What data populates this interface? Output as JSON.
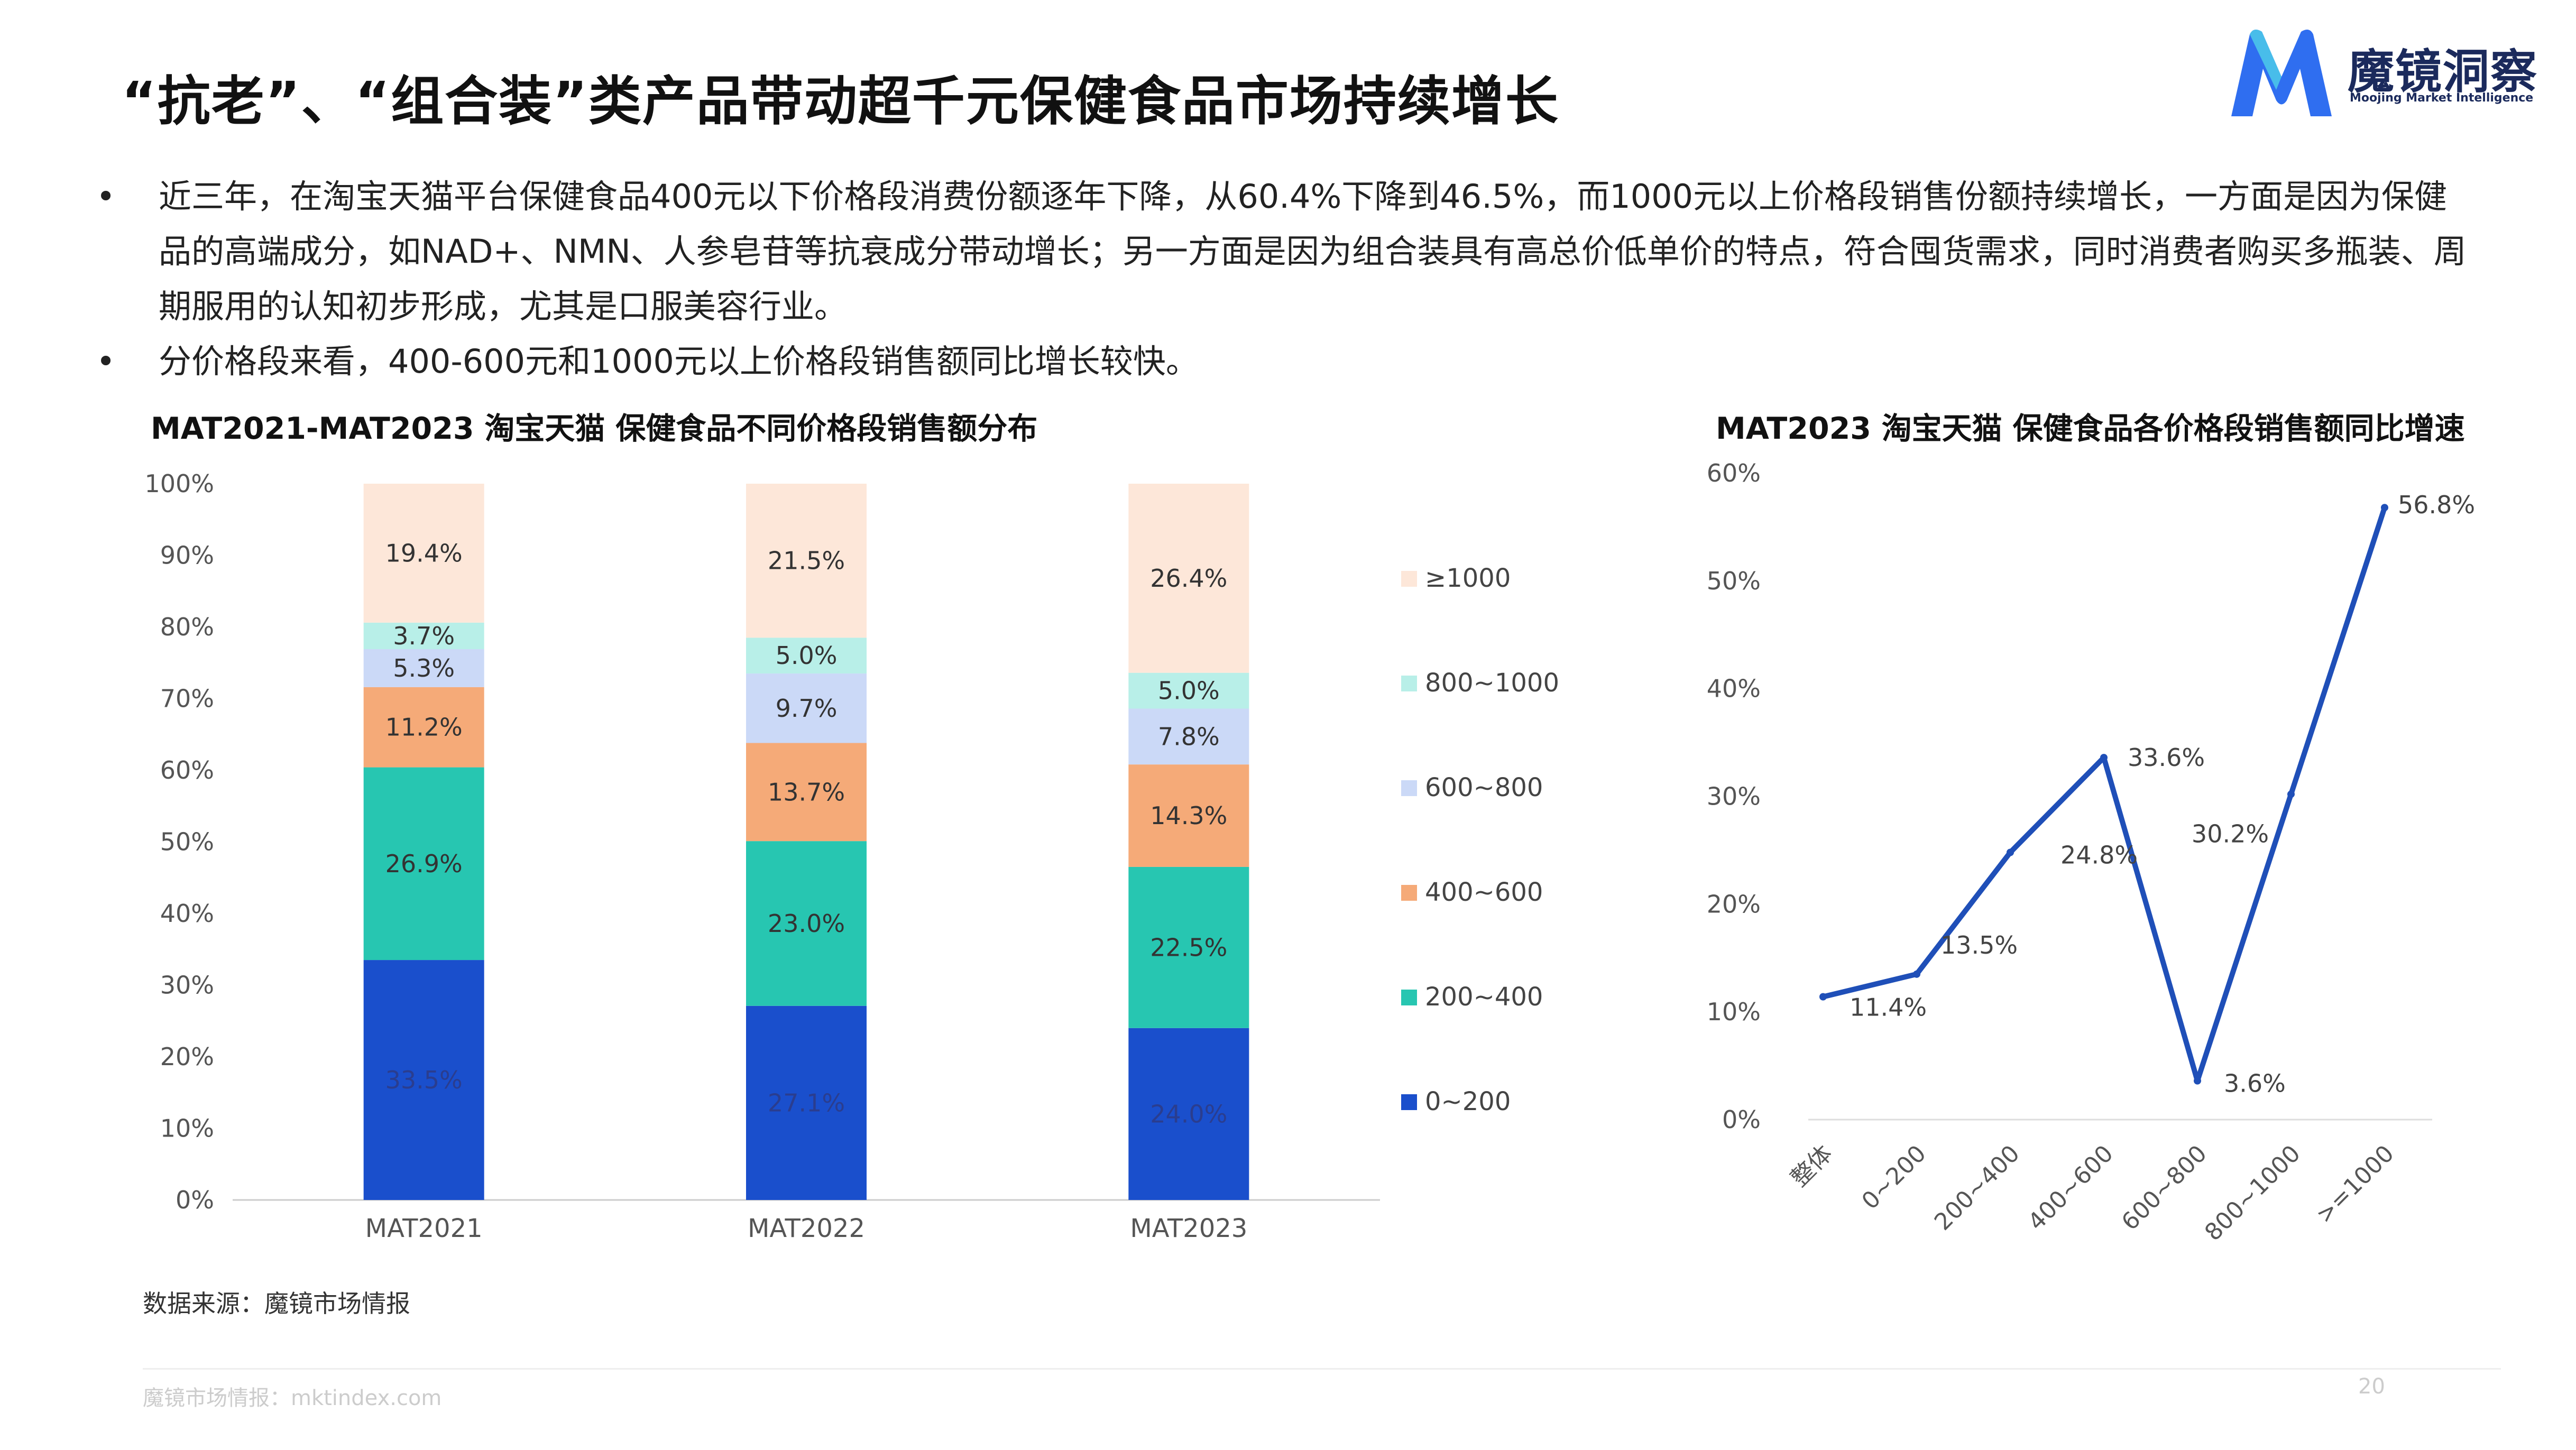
{
  "title": "“抗老”、“组合装”类产品带动超千元保健食品市场持续增长",
  "logo": {
    "name_cn": "魔镜洞察",
    "name_en": "Moojing Market Intelligence",
    "brand_color": "#2f6ef0"
  },
  "bullets": [
    "近三年，在淘宝天猫平台保健食品400元以下价格段消费份额逐年下降，从60.4%下降到46.5%，而1000元以上价格段销售份额持续增长，一方面是因为保健品的高端成分，如NAD+、NMN、人参皂苷等抗衰成分带动增长；另一方面是因为组合装具有高总价低单价的特点，符合囤货需求，同时消费者购买多瓶装、周期服用的认知初步形成，尤其是口服美容行业。",
    "分价格段来看，400-600元和1000元以上价格段销售额同比增长较快。"
  ],
  "bullet_symbol": "•",
  "chart_data": [
    {
      "type": "bar",
      "stacked": true,
      "title": "MAT2021-MAT2023 淘宝天猫 保健食品不同价格段销售额分布",
      "categories": [
        "MAT2021",
        "MAT2022",
        "MAT2023"
      ],
      "ylim": [
        0,
        100
      ],
      "yticks": [
        "0%",
        "10%",
        "20%",
        "30%",
        "40%",
        "50%",
        "60%",
        "70%",
        "80%",
        "90%",
        "100%"
      ],
      "legend_position": "right",
      "series": [
        {
          "name": "0~200",
          "color": "#1a4fcc",
          "values": [
            33.5,
            27.1,
            24.0
          ],
          "labels": [
            "33.5%",
            "27.1%",
            "24.0%"
          ]
        },
        {
          "name": "200~400",
          "color": "#27c6b1",
          "values": [
            26.9,
            23.0,
            22.5
          ],
          "labels": [
            "26.9%",
            "23.0%",
            "22.5%"
          ]
        },
        {
          "name": "400~600",
          "color": "#f5aa78",
          "values": [
            11.2,
            13.7,
            14.3
          ],
          "labels": [
            "11.2%",
            "13.7%",
            "14.3%"
          ]
        },
        {
          "name": "600~800",
          "color": "#cbd9f7",
          "values": [
            5.3,
            9.7,
            7.8
          ],
          "labels": [
            "5.3%",
            "9.7%",
            "7.8%"
          ]
        },
        {
          "name": "800~1000",
          "color": "#b8efe8",
          "values": [
            3.7,
            5.0,
            5.0
          ],
          "labels": [
            "3.7%",
            "5.0%",
            "5.0%"
          ]
        },
        {
          "name": "≥1000",
          "color": "#fde7d9",
          "values": [
            19.4,
            21.5,
            26.4
          ],
          "labels": [
            "19.4%",
            "21.5%",
            "26.4%"
          ]
        }
      ]
    },
    {
      "type": "line",
      "title": "MAT2023 淘宝天猫 保健食品各价格段销售额同比增速",
      "categories": [
        "整体",
        "0~200",
        "200~400",
        "400~600",
        "600~800",
        "800~1000",
        ">=1000"
      ],
      "ylim": [
        0,
        60
      ],
      "yticks": [
        "0%",
        "10%",
        "20%",
        "30%",
        "40%",
        "50%",
        "60%"
      ],
      "series": [
        {
          "color": "#1f4fb8",
          "values": [
            11.4,
            13.5,
            24.8,
            33.6,
            3.6,
            30.2,
            56.8
          ],
          "labels": [
            "11.4%",
            "13.5%",
            "24.8%",
            "33.6%",
            "3.6%",
            "30.2%",
            "56.8%"
          ]
        }
      ]
    }
  ],
  "source": "数据来源：魔镜市场情报",
  "footer": "魔镜市场情报：mktindex.com",
  "page_number": "20"
}
